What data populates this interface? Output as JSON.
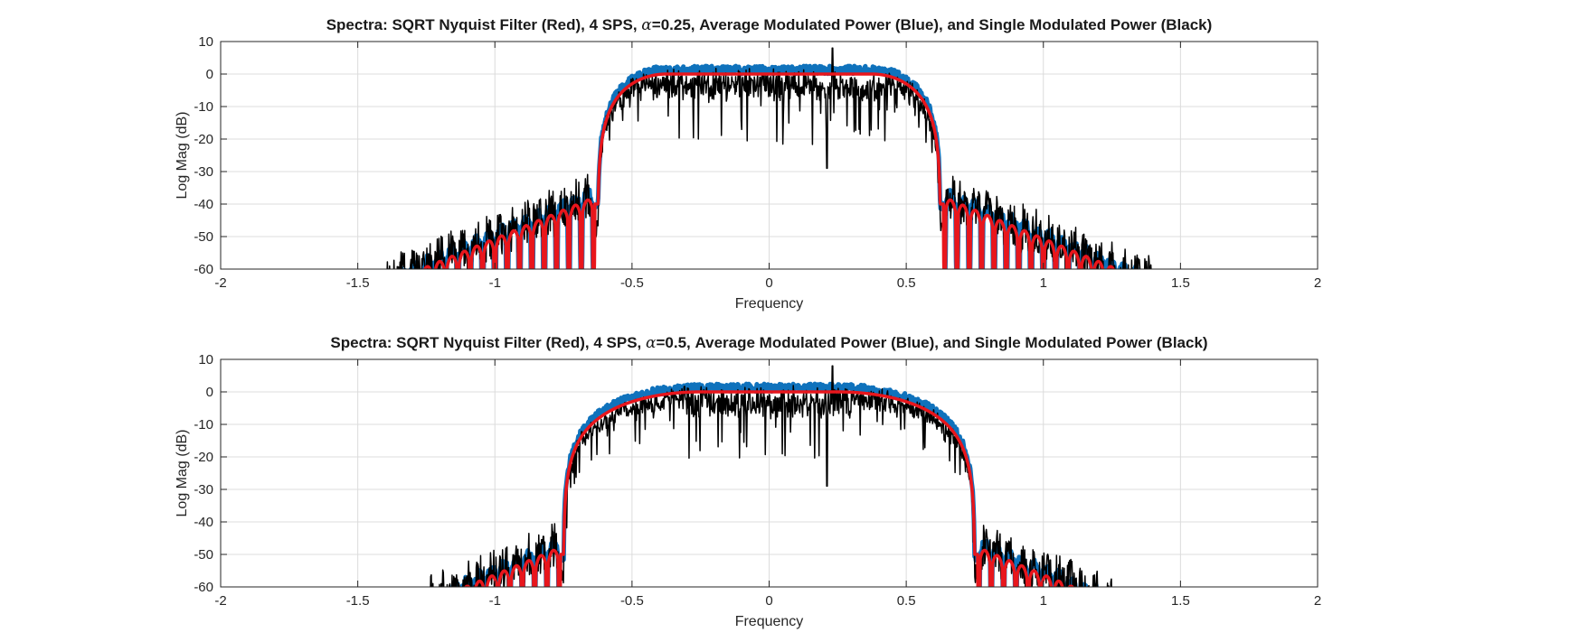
{
  "chart_data": [
    {
      "type": "line",
      "title_main": "Spectra: SQRT Nyquist Filter (Red), 4 SPS, ",
      "title_alpha_symbol": "α",
      "title_alpha_value": "=0.25",
      "title_rest": ", Average Modulated Power (Blue), and Single Modulated Power (Black)",
      "xlabel": "Frequency",
      "ylabel": "Log Mag (dB)",
      "xlim": [
        -2,
        2
      ],
      "ylim": [
        -60,
        10
      ],
      "xticks": [
        -2,
        -1.5,
        -1,
        -0.5,
        0,
        0.5,
        1,
        1.5,
        2
      ],
      "yticks": [
        10,
        0,
        -10,
        -20,
        -30,
        -40,
        -50,
        -60
      ],
      "grid": true,
      "series": [
        {
          "name": "SQRT Nyquist Filter",
          "color": "#e8161c",
          "rolloff": 0.25,
          "edge_floor": -40
        },
        {
          "name": "Average Modulated Power",
          "color": "#0f72bc",
          "rolloff": 0.25
        },
        {
          "name": "Single Modulated Power",
          "color": "#000000",
          "rolloff": 0.25
        }
      ]
    },
    {
      "type": "line",
      "title_main": "Spectra: SQRT Nyquist Filter (Red), 4 SPS, ",
      "title_alpha_symbol": "α",
      "title_alpha_value": "=0.5",
      "title_rest": ", Average Modulated Power (Blue), and Single Modulated Power (Black)",
      "xlabel": "Frequency",
      "ylabel": "Log Mag (dB)",
      "xlim": [
        -2,
        2
      ],
      "ylim": [
        -60,
        10
      ],
      "xticks": [
        -2,
        -1.5,
        -1,
        -0.5,
        0,
        0.5,
        1,
        1.5,
        2
      ],
      "yticks": [
        10,
        0,
        -10,
        -20,
        -30,
        -40,
        -50,
        -60
      ],
      "grid": true,
      "series": [
        {
          "name": "SQRT Nyquist Filter",
          "color": "#e8161c",
          "rolloff": 0.5,
          "edge_floor": -50
        },
        {
          "name": "Average Modulated Power",
          "color": "#0f72bc",
          "rolloff": 0.5
        },
        {
          "name": "Single Modulated Power",
          "color": "#000000",
          "rolloff": 0.5
        }
      ]
    }
  ]
}
